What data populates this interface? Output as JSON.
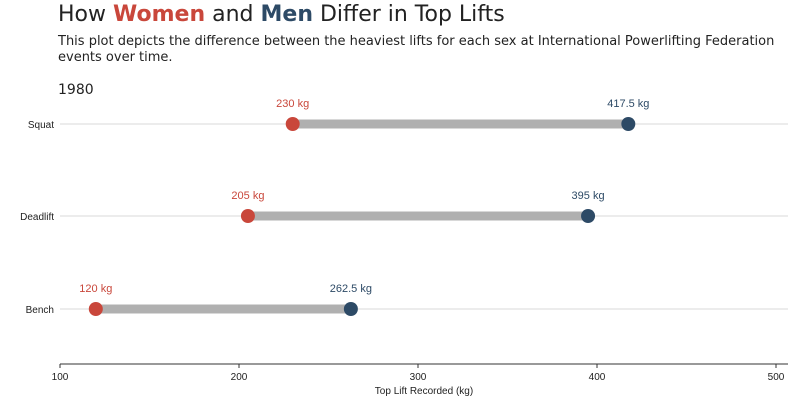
{
  "title": {
    "part1": "How ",
    "women": "Women",
    "part2": " and ",
    "men": "Men",
    "part3": " Differ in Top Lifts"
  },
  "subtitle": "This plot depicts the difference between the heaviest lifts for each sex at International Powerlifting Federation events over time.",
  "year": "1980",
  "colors": {
    "women": "#c9473b",
    "men": "#2d4a66",
    "segment": "#b0b0b0",
    "gridline": "#d9d9d9",
    "axis": "#333333"
  },
  "chart_data": {
    "type": "dumbbell",
    "title": "How Women and Men Differ in Top Lifts",
    "xlabel": "Top Lift Recorded (kg)",
    "xlim": [
      100,
      510
    ],
    "xticks": [
      100,
      200,
      300,
      400,
      500
    ],
    "categories": [
      "Squat",
      "Deadlift",
      "Bench"
    ],
    "series": [
      {
        "name": "Women",
        "values": [
          230,
          205,
          120
        ],
        "labels": [
          "230 kg",
          "205 kg",
          "120 kg"
        ]
      },
      {
        "name": "Men",
        "values": [
          417.5,
          395,
          262.5
        ],
        "labels": [
          "417.5 kg",
          "395 kg",
          "262.5 kg"
        ]
      }
    ],
    "grid": "horizontal"
  }
}
